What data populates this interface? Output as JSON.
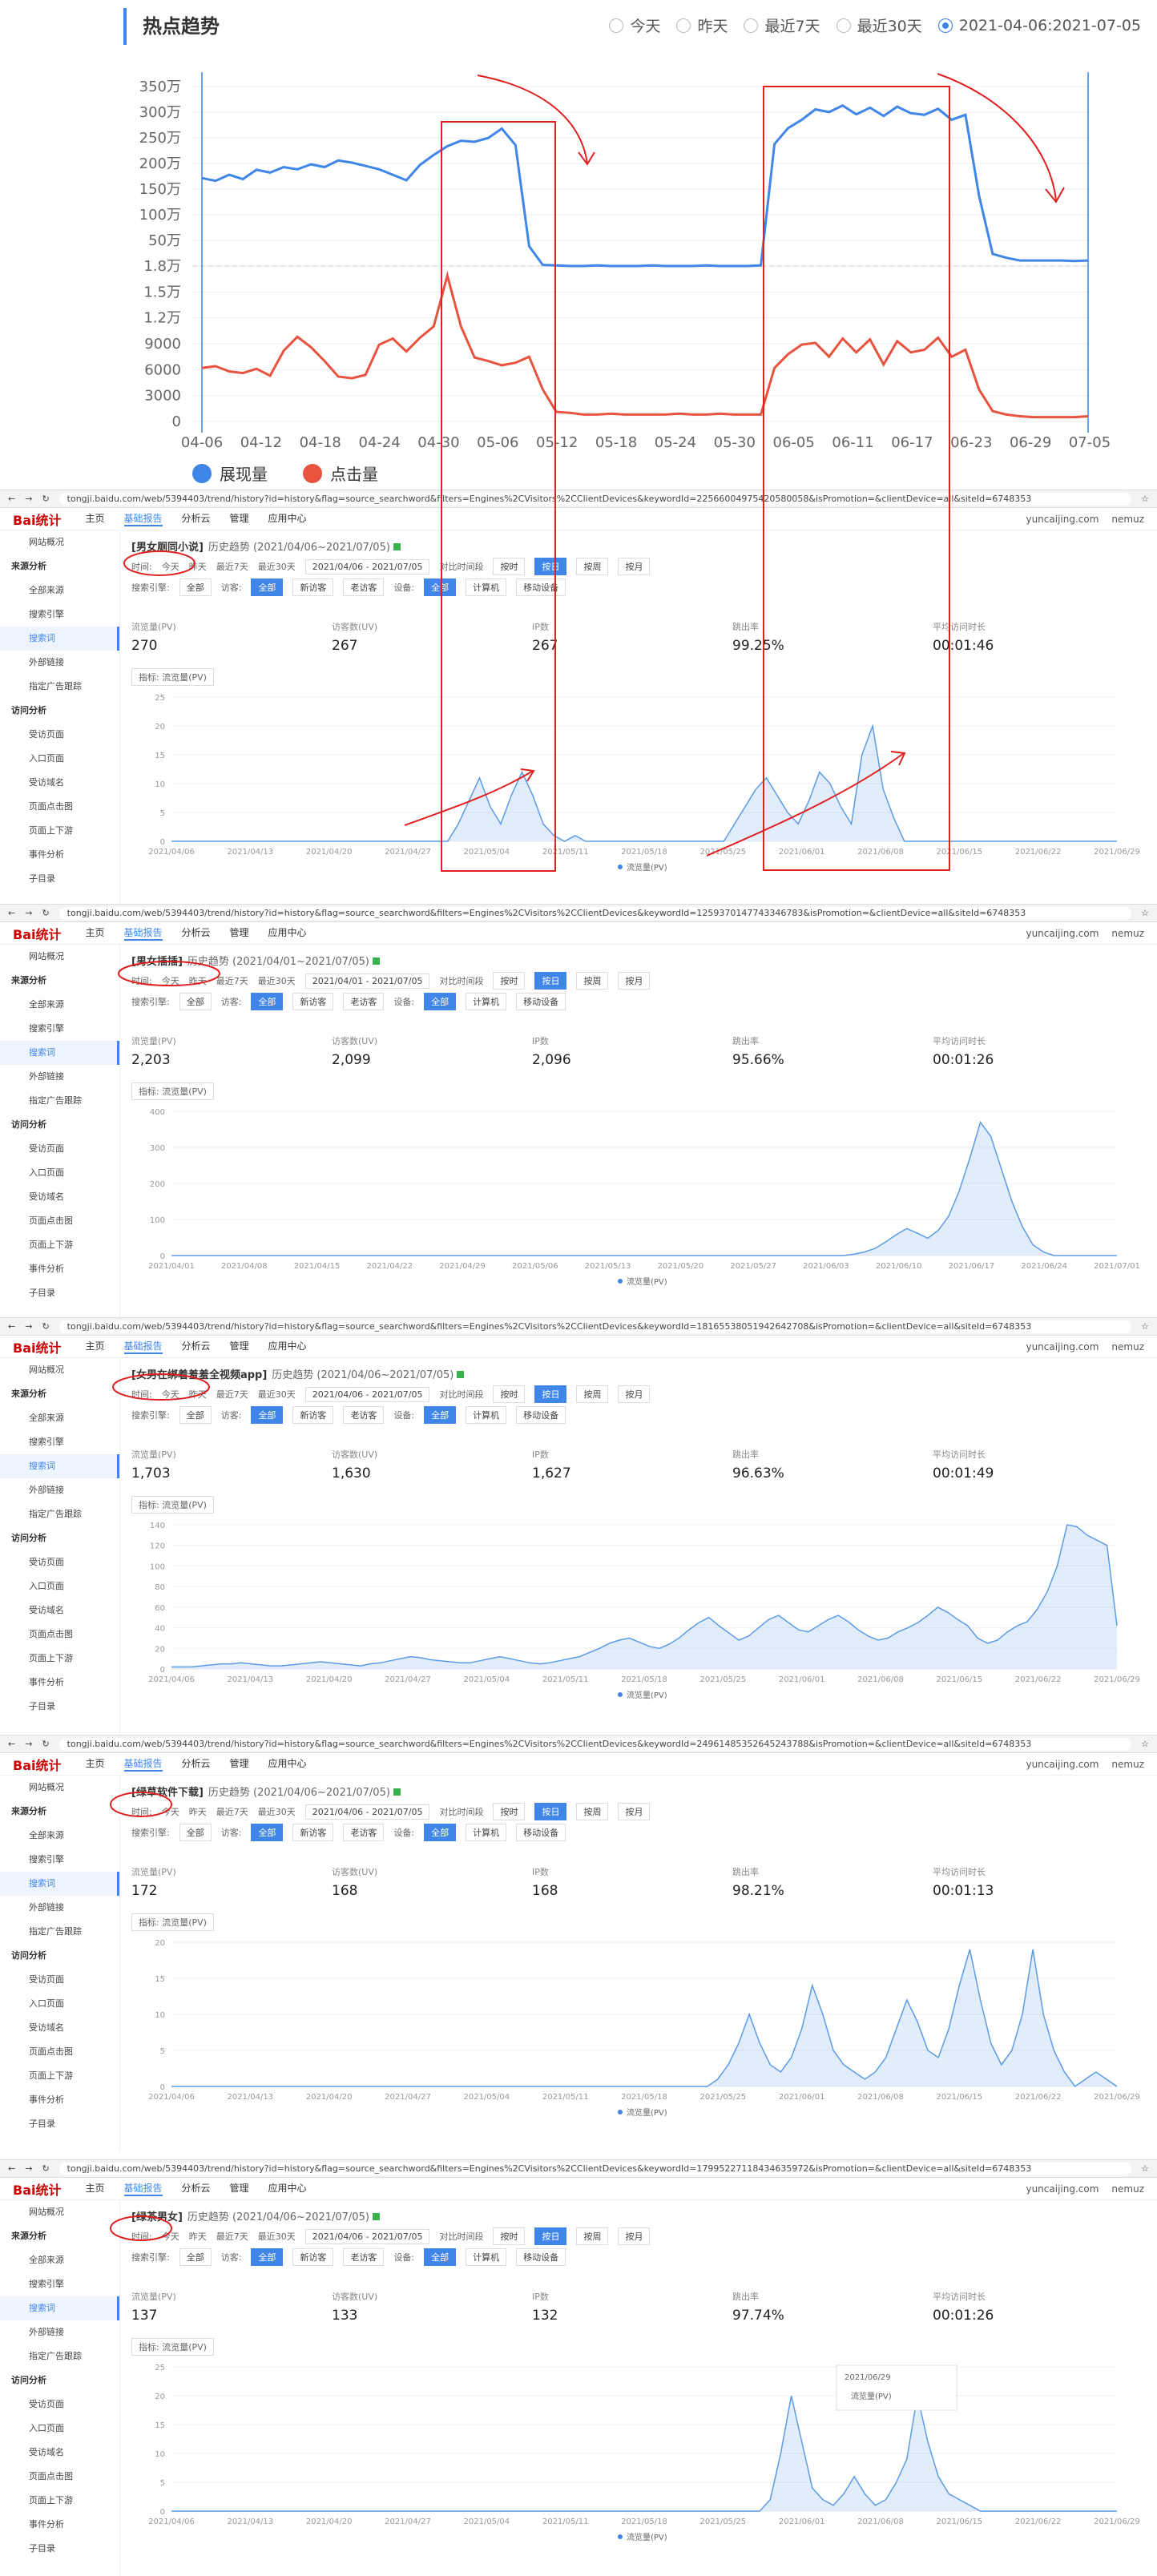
{
  "top": {
    "title": "热点趋势",
    "options": [
      "今天",
      "昨天",
      "最近7天",
      "最近30天"
    ],
    "active_option": "2021-04-06:2021-07-05",
    "legend": [
      {
        "name": "展现量",
        "color": "#3f86e8"
      },
      {
        "name": "点击量",
        "color": "#e8533f"
      }
    ]
  },
  "chart_data": [
    {
      "type": "line",
      "title": "",
      "y_ticks": [
        "0",
        "3000",
        "6000",
        "9000",
        "1.2万",
        "1.5万",
        "1.8万",
        "50万",
        "100万",
        "150万",
        "200万",
        "250万",
        "300万",
        "350万"
      ],
      "x_ticks": [
        "04-06",
        "04-12",
        "04-18",
        "04-24",
        "04-30",
        "05-06",
        "05-12",
        "05-18",
        "05-24",
        "05-30",
        "06-05",
        "06-11",
        "06-17",
        "06-23",
        "06-29",
        "07-05"
      ],
      "series": [
        {
          "name": "展现量",
          "color": "#3f86e8",
          "unit": "万",
          "values": [
            190,
            185,
            196,
            188,
            205,
            200,
            210,
            206,
            215,
            210,
            222,
            218,
            212,
            206,
            196,
            186,
            214,
            232,
            248,
            258,
            256,
            263,
            280,
            250,
            66,
            32,
            31,
            30,
            30,
            31,
            30,
            30,
            30,
            31,
            30,
            30,
            30,
            31,
            30,
            30,
            30,
            31,
            252,
            281,
            296,
            315,
            310,
            322,
            306,
            318,
            303,
            320,
            308,
            305,
            316,
            296,
            305,
            158,
            52,
            45,
            40,
            40,
            40,
            40,
            39,
            40
          ]
        },
        {
          "name": "点击量",
          "color": "#e8533f",
          "unit": "",
          "values": [
            6200,
            6400,
            5800,
            5600,
            6100,
            5300,
            8200,
            9800,
            8600,
            7000,
            5200,
            5000,
            5400,
            8900,
            9600,
            8100,
            9700,
            11000,
            16900,
            11000,
            7400,
            7000,
            6500,
            6800,
            7500,
            3700,
            1100,
            1000,
            800,
            800,
            900,
            800,
            800,
            800,
            800,
            900,
            800,
            800,
            900,
            800,
            800,
            800,
            6200,
            7800,
            8900,
            9100,
            7500,
            9600,
            8000,
            9500,
            6600,
            9300,
            8000,
            8300,
            9700,
            7500,
            8300,
            3700,
            1200,
            800,
            600,
            500,
            500,
            500,
            500,
            600
          ]
        }
      ]
    },
    {
      "type": "area",
      "title": "",
      "x_ticks": [
        "2021/04/06",
        "2021/04/13",
        "2021/04/20",
        "2021/04/27",
        "2021/05/04",
        "2021/05/11",
        "2021/05/18",
        "2021/05/25",
        "2021/06/01",
        "2021/06/08",
        "2021/06/15",
        "2021/06/22",
        "2021/06/29"
      ],
      "y_ticks": [
        "0",
        "5",
        "10",
        "15",
        "20",
        "25"
      ],
      "series": [
        {
          "name": "流量量(PV)",
          "values": [
            0,
            0,
            0,
            0,
            0,
            0,
            0,
            0,
            0,
            0,
            0,
            0,
            0,
            0,
            0,
            0,
            0,
            0,
            0,
            0,
            0,
            0,
            0,
            0,
            0,
            0,
            0,
            3,
            7,
            11,
            6,
            3,
            8,
            12,
            8,
            3,
            1,
            0,
            1,
            0,
            0,
            0,
            0,
            0,
            0,
            0,
            0,
            0,
            0,
            0,
            0,
            0,
            0,
            3,
            6,
            9,
            11,
            8,
            5,
            3,
            7,
            12,
            10,
            6,
            3,
            15,
            20,
            9,
            4,
            0,
            0,
            0,
            0,
            0,
            0,
            0,
            0,
            0,
            0,
            0,
            0,
            0,
            0,
            0,
            0,
            0,
            0,
            0,
            0,
            0
          ]
        }
      ]
    },
    {
      "type": "area",
      "title": "",
      "x_ticks": [
        "2021/04/01",
        "2021/04/08",
        "2021/04/15",
        "2021/04/22",
        "2021/04/29",
        "2021/05/06",
        "2021/05/13",
        "2021/05/20",
        "2021/05/27",
        "2021/06/03",
        "2021/06/10",
        "2021/06/17",
        "2021/06/24",
        "2021/07/01"
      ],
      "y_ticks": [
        "0",
        "100",
        "200",
        "300",
        "400"
      ],
      "series": [
        {
          "name": "流量量(PV)",
          "values": [
            0,
            0,
            0,
            0,
            0,
            0,
            0,
            0,
            0,
            0,
            0,
            0,
            0,
            0,
            0,
            0,
            0,
            0,
            0,
            0,
            0,
            0,
            0,
            0,
            0,
            0,
            0,
            0,
            0,
            0,
            0,
            0,
            0,
            0,
            0,
            0,
            0,
            0,
            0,
            0,
            0,
            0,
            0,
            0,
            0,
            0,
            0,
            0,
            0,
            0,
            0,
            0,
            0,
            0,
            0,
            0,
            0,
            0,
            0,
            0,
            0,
            0,
            0,
            0,
            0,
            4,
            10,
            20,
            38,
            58,
            75,
            62,
            48,
            70,
            110,
            180,
            270,
            370,
            330,
            240,
            150,
            80,
            30,
            10,
            0,
            0,
            0,
            0,
            0,
            0,
            0
          ]
        }
      ]
    },
    {
      "type": "area",
      "title": "",
      "x_ticks": [
        "2021/04/06",
        "2021/04/13",
        "2021/04/20",
        "2021/04/27",
        "2021/05/04",
        "2021/05/11",
        "2021/05/18",
        "2021/05/25",
        "2021/06/01",
        "2021/06/08",
        "2021/06/15",
        "2021/06/22",
        "2021/06/29"
      ],
      "y_ticks": [
        "0",
        "20",
        "40",
        "60",
        "80",
        "100",
        "120",
        "140"
      ],
      "series": [
        {
          "name": "流量量(PV)",
          "values": [
            2,
            2,
            2,
            3,
            4,
            5,
            5,
            6,
            5,
            4,
            3,
            3,
            4,
            5,
            6,
            7,
            6,
            5,
            4,
            3,
            5,
            6,
            8,
            10,
            12,
            11,
            9,
            8,
            7,
            6,
            6,
            8,
            10,
            12,
            10,
            8,
            6,
            5,
            6,
            8,
            10,
            12,
            16,
            20,
            25,
            28,
            30,
            26,
            22,
            20,
            24,
            30,
            38,
            45,
            50,
            42,
            35,
            28,
            32,
            40,
            48,
            52,
            45,
            38,
            36,
            42,
            48,
            52,
            46,
            38,
            32,
            28,
            30,
            36,
            40,
            45,
            52,
            60,
            55,
            48,
            42,
            30,
            25,
            28,
            36,
            42,
            46,
            58,
            75,
            100,
            140,
            138,
            130,
            125,
            120,
            42
          ]
        }
      ]
    },
    {
      "type": "area",
      "title": "",
      "x_ticks": [
        "2021/04/06",
        "2021/04/13",
        "2021/04/20",
        "2021/04/27",
        "2021/05/04",
        "2021/05/11",
        "2021/05/18",
        "2021/05/25",
        "2021/06/01",
        "2021/06/08",
        "2021/06/15",
        "2021/06/22",
        "2021/06/29"
      ],
      "y_ticks": [
        "0",
        "5",
        "10",
        "15",
        "20"
      ],
      "series": [
        {
          "name": "流量量(PV)",
          "values": [
            0,
            0,
            0,
            0,
            0,
            0,
            0,
            0,
            0,
            0,
            0,
            0,
            0,
            0,
            0,
            0,
            0,
            0,
            0,
            0,
            0,
            0,
            0,
            0,
            0,
            0,
            0,
            0,
            0,
            0,
            0,
            0,
            0,
            0,
            0,
            0,
            0,
            0,
            0,
            0,
            0,
            0,
            0,
            0,
            0,
            0,
            0,
            0,
            0,
            0,
            0,
            0,
            1,
            3,
            6,
            10,
            6,
            3,
            2,
            4,
            8,
            14,
            10,
            5,
            3,
            2,
            1,
            2,
            4,
            8,
            12,
            9,
            5,
            4,
            8,
            14,
            19,
            12,
            6,
            3,
            5,
            10,
            19,
            10,
            5,
            2,
            0,
            1,
            2,
            1,
            0
          ]
        }
      ]
    },
    {
      "type": "area",
      "title": "",
      "x_ticks": [
        "2021/04/06",
        "2021/04/13",
        "2021/04/20",
        "2021/04/27",
        "2021/05/04",
        "2021/05/11",
        "2021/05/18",
        "2021/05/25",
        "2021/06/01",
        "2021/06/08",
        "2021/06/15",
        "2021/06/22",
        "2021/06/29"
      ],
      "y_ticks": [
        "0",
        "5",
        "10",
        "15",
        "20",
        "25"
      ],
      "series": [
        {
          "name": "流量量(PV)",
          "values": [
            0,
            0,
            0,
            0,
            0,
            0,
            0,
            0,
            0,
            0,
            0,
            0,
            0,
            0,
            0,
            0,
            0,
            0,
            0,
            0,
            0,
            0,
            0,
            0,
            0,
            0,
            0,
            0,
            0,
            0,
            0,
            0,
            0,
            0,
            0,
            0,
            0,
            0,
            0,
            0,
            0,
            0,
            0,
            0,
            0,
            0,
            0,
            0,
            0,
            0,
            0,
            0,
            0,
            0,
            0,
            0,
            0,
            2,
            10,
            20,
            12,
            4,
            2,
            1,
            3,
            6,
            3,
            1,
            2,
            5,
            9,
            20,
            12,
            6,
            3,
            2,
            1,
            0,
            0,
            0,
            0,
            0,
            0,
            0,
            0,
            0,
            0,
            0,
            0,
            0,
            0
          ]
        }
      ]
    }
  ],
  "screens": [
    {
      "url": "tongji.baidu.com/web/5394403/trend/history?id=history&flag=source_searchword&filters=Engines%2CVisitors%2CClientDevices&keywordId=22566004975420580058&isPromotion=&clientDevice=all&siteId=6748353",
      "keyword": "[男女厕同小说]",
      "range": "历史趋势 (2021/04/06~2021/07/05)",
      "stats": [
        {
          "k": "流览量(PV)",
          "v": "270"
        },
        {
          "k": "访客数(UV)",
          "v": "267"
        },
        {
          "k": "IP数",
          "v": "267"
        },
        {
          "k": "跳出率",
          "v": "99.25%"
        },
        {
          "k": "平均访问时长",
          "v": "00:01:46"
        }
      ],
      "date_range": "2021/04/06 - 2021/07/05"
    },
    {
      "url": "tongji.baidu.com/web/5394403/trend/history?id=history&flag=source_searchword&filters=Engines%2CVisitors%2CClientDevices&keywordId=1259370147743346783&isPromotion=&clientDevice=all&siteId=6748353",
      "keyword": "[男女插插]",
      "range": "历史趋势 (2021/04/01~2021/07/05)",
      "stats": [
        {
          "k": "流览量(PV)",
          "v": "2,203"
        },
        {
          "k": "访客数(UV)",
          "v": "2,099"
        },
        {
          "k": "IP数",
          "v": "2,096"
        },
        {
          "k": "跳出率",
          "v": "95.66%"
        },
        {
          "k": "平均访问时长",
          "v": "00:01:26"
        }
      ],
      "date_range": "2021/04/01 - 2021/07/05"
    },
    {
      "url": "tongji.baidu.com/web/5394403/trend/history?id=history&flag=source_searchword&filters=Engines%2CVisitors%2CClientDevices&keywordId=18165538051942642708&isPromotion=&clientDevice=all&siteId=6748353",
      "keyword": "[女男在绑着羞羞全视频app]",
      "range": "历史趋势 (2021/04/06~2021/07/05)",
      "stats": [
        {
          "k": "流览量(PV)",
          "v": "1,703"
        },
        {
          "k": "访客数(UV)",
          "v": "1,630"
        },
        {
          "k": "IP数",
          "v": "1,627"
        },
        {
          "k": "跳出率",
          "v": "96.63%"
        },
        {
          "k": "平均访问时长",
          "v": "00:01:49"
        }
      ],
      "date_range": "2021/04/06 - 2021/07/05"
    },
    {
      "url": "tongji.baidu.com/web/5394403/trend/history?id=history&flag=source_searchword&filters=Engines%2CVisitors%2CClientDevices&keywordId=24961485352645243788&isPromotion=&clientDevice=all&siteId=6748353",
      "keyword": "[绿草软件下载]",
      "range": "历史趋势 (2021/04/06~2021/07/05)",
      "stats": [
        {
          "k": "流览量(PV)",
          "v": "172"
        },
        {
          "k": "访客数(UV)",
          "v": "168"
        },
        {
          "k": "IP数",
          "v": "168"
        },
        {
          "k": "跳出率",
          "v": "98.21%"
        },
        {
          "k": "平均访问时长",
          "v": "00:01:13"
        }
      ],
      "date_range": "2021/04/06 - 2021/07/05"
    },
    {
      "url": "tongji.baidu.com/web/5394403/trend/history?id=history&flag=source_searchword&filters=Engines%2CVisitors%2CClientDevices&keywordId=17995227118434635972&isPromotion=&clientDevice=all&siteId=6748353",
      "keyword": "[绿茶男女]",
      "range": "历史趋势 (2021/04/06~2021/07/05)",
      "stats": [
        {
          "k": "流览量(PV)",
          "v": "137"
        },
        {
          "k": "访客数(UV)",
          "v": "133"
        },
        {
          "k": "IP数",
          "v": "132"
        },
        {
          "k": "跳出率",
          "v": "97.74%"
        },
        {
          "k": "平均访问时长",
          "v": "00:01:26"
        }
      ],
      "date_range": "2021/04/06 - 2021/07/05"
    }
  ],
  "ui": {
    "logo": "Bai统计",
    "nav": [
      "主页",
      "基础报告",
      "分析云",
      "管理",
      "应用中心"
    ],
    "account": "yuncaijing.com",
    "user": "nemuz",
    "sidebar": [
      "网站概况",
      "来源分析",
      "全部来源",
      "搜索引擎",
      "搜索词",
      "外部链接",
      "指定广告跟踪",
      "访问分析",
      "受访页面",
      "入口页面",
      "受访域名",
      "页面点击图",
      "页面上下游",
      "事件分析",
      "子目录"
    ],
    "filters": {
      "time": "时间:",
      "options": [
        "今天",
        "昨天",
        "最近7天",
        "最近30天"
      ],
      "compare": "对比时间段",
      "granularity": [
        "按时",
        "按日",
        "按周",
        "按月"
      ],
      "engine_label": "搜索引擎:",
      "engine": "全部",
      "visitor_label": "访客:",
      "visitors": [
        "全部",
        "新访客",
        "老访客"
      ],
      "device_label": "设备:",
      "devices": [
        "全部",
        "计算机",
        "移动设备"
      ]
    },
    "indicator": "指标: 流览量(PV)",
    "legend": "流览量(PV)",
    "tooltip_date": "2021/06/29",
    "tooltip_value": "流览量(PV)"
  }
}
